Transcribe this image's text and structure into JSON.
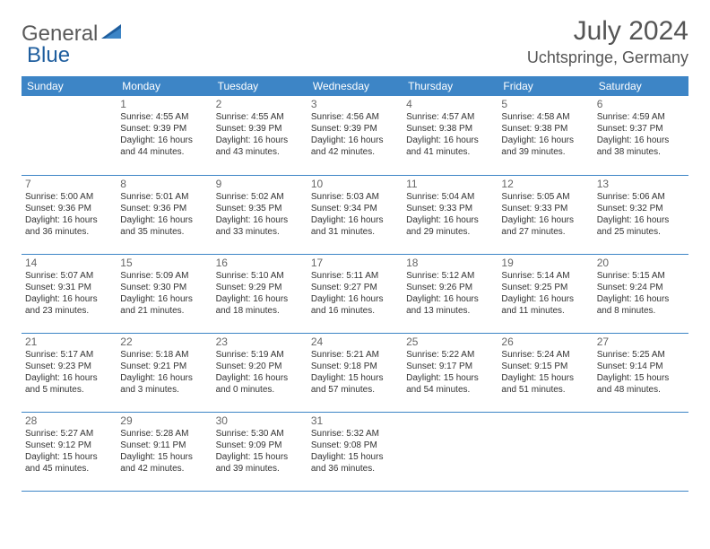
{
  "logo": {
    "text1": "General",
    "text2": "Blue",
    "color1": "#6a6a6a",
    "color2": "#1f5e9e"
  },
  "header": {
    "month_title": "July 2024",
    "location": "Uchtspringe, Germany"
  },
  "colors": {
    "header_bg": "#3d85c6",
    "header_text": "#ffffff",
    "border": "#3d85c6",
    "daynum": "#666666",
    "body_text": "#333333"
  },
  "weekdays": [
    "Sunday",
    "Monday",
    "Tuesday",
    "Wednesday",
    "Thursday",
    "Friday",
    "Saturday"
  ],
  "grid": {
    "first_weekday_index": 1,
    "days_in_month": 31
  },
  "days": {
    "1": {
      "sunrise": "4:55 AM",
      "sunset": "9:39 PM",
      "daylight": "16 hours and 44 minutes."
    },
    "2": {
      "sunrise": "4:55 AM",
      "sunset": "9:39 PM",
      "daylight": "16 hours and 43 minutes."
    },
    "3": {
      "sunrise": "4:56 AM",
      "sunset": "9:39 PM",
      "daylight": "16 hours and 42 minutes."
    },
    "4": {
      "sunrise": "4:57 AM",
      "sunset": "9:38 PM",
      "daylight": "16 hours and 41 minutes."
    },
    "5": {
      "sunrise": "4:58 AM",
      "sunset": "9:38 PM",
      "daylight": "16 hours and 39 minutes."
    },
    "6": {
      "sunrise": "4:59 AM",
      "sunset": "9:37 PM",
      "daylight": "16 hours and 38 minutes."
    },
    "7": {
      "sunrise": "5:00 AM",
      "sunset": "9:36 PM",
      "daylight": "16 hours and 36 minutes."
    },
    "8": {
      "sunrise": "5:01 AM",
      "sunset": "9:36 PM",
      "daylight": "16 hours and 35 minutes."
    },
    "9": {
      "sunrise": "5:02 AM",
      "sunset": "9:35 PM",
      "daylight": "16 hours and 33 minutes."
    },
    "10": {
      "sunrise": "5:03 AM",
      "sunset": "9:34 PM",
      "daylight": "16 hours and 31 minutes."
    },
    "11": {
      "sunrise": "5:04 AM",
      "sunset": "9:33 PM",
      "daylight": "16 hours and 29 minutes."
    },
    "12": {
      "sunrise": "5:05 AM",
      "sunset": "9:33 PM",
      "daylight": "16 hours and 27 minutes."
    },
    "13": {
      "sunrise": "5:06 AM",
      "sunset": "9:32 PM",
      "daylight": "16 hours and 25 minutes."
    },
    "14": {
      "sunrise": "5:07 AM",
      "sunset": "9:31 PM",
      "daylight": "16 hours and 23 minutes."
    },
    "15": {
      "sunrise": "5:09 AM",
      "sunset": "9:30 PM",
      "daylight": "16 hours and 21 minutes."
    },
    "16": {
      "sunrise": "5:10 AM",
      "sunset": "9:29 PM",
      "daylight": "16 hours and 18 minutes."
    },
    "17": {
      "sunrise": "5:11 AM",
      "sunset": "9:27 PM",
      "daylight": "16 hours and 16 minutes."
    },
    "18": {
      "sunrise": "5:12 AM",
      "sunset": "9:26 PM",
      "daylight": "16 hours and 13 minutes."
    },
    "19": {
      "sunrise": "5:14 AM",
      "sunset": "9:25 PM",
      "daylight": "16 hours and 11 minutes."
    },
    "20": {
      "sunrise": "5:15 AM",
      "sunset": "9:24 PM",
      "daylight": "16 hours and 8 minutes."
    },
    "21": {
      "sunrise": "5:17 AM",
      "sunset": "9:23 PM",
      "daylight": "16 hours and 5 minutes."
    },
    "22": {
      "sunrise": "5:18 AM",
      "sunset": "9:21 PM",
      "daylight": "16 hours and 3 minutes."
    },
    "23": {
      "sunrise": "5:19 AM",
      "sunset": "9:20 PM",
      "daylight": "16 hours and 0 minutes."
    },
    "24": {
      "sunrise": "5:21 AM",
      "sunset": "9:18 PM",
      "daylight": "15 hours and 57 minutes."
    },
    "25": {
      "sunrise": "5:22 AM",
      "sunset": "9:17 PM",
      "daylight": "15 hours and 54 minutes."
    },
    "26": {
      "sunrise": "5:24 AM",
      "sunset": "9:15 PM",
      "daylight": "15 hours and 51 minutes."
    },
    "27": {
      "sunrise": "5:25 AM",
      "sunset": "9:14 PM",
      "daylight": "15 hours and 48 minutes."
    },
    "28": {
      "sunrise": "5:27 AM",
      "sunset": "9:12 PM",
      "daylight": "15 hours and 45 minutes."
    },
    "29": {
      "sunrise": "5:28 AM",
      "sunset": "9:11 PM",
      "daylight": "15 hours and 42 minutes."
    },
    "30": {
      "sunrise": "5:30 AM",
      "sunset": "9:09 PM",
      "daylight": "15 hours and 39 minutes."
    },
    "31": {
      "sunrise": "5:32 AM",
      "sunset": "9:08 PM",
      "daylight": "15 hours and 36 minutes."
    }
  },
  "labels": {
    "sunrise": "Sunrise:",
    "sunset": "Sunset:",
    "daylight": "Daylight:"
  }
}
